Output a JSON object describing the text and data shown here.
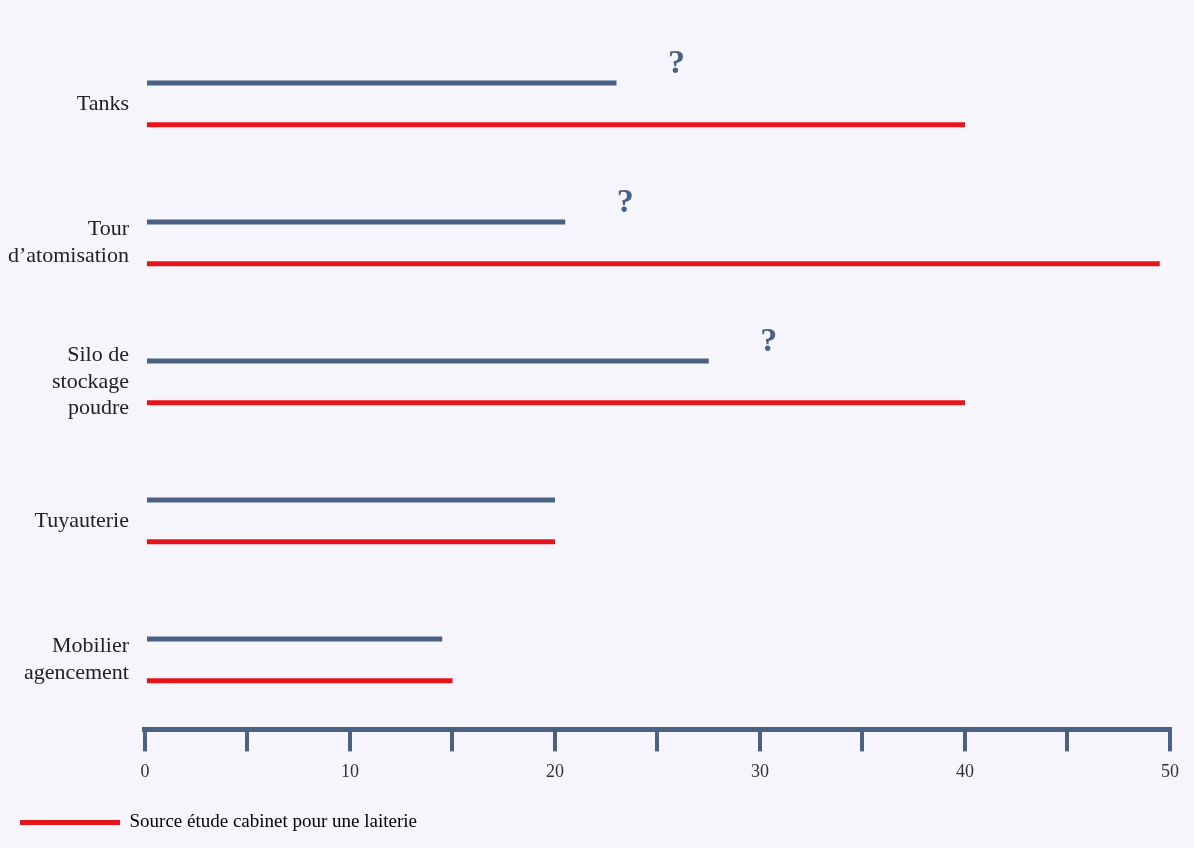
{
  "chart_data": {
    "type": "bar",
    "orientation": "horizontal",
    "categories": [
      "Tanks",
      "Tour d’atomisation",
      "Silo de stockage poudre",
      "Tuyauterie",
      "Mobilier agencement"
    ],
    "series": [
      {
        "color": "#4a6182",
        "values": [
          23,
          20.5,
          27.5,
          20,
          14.5
        ]
      },
      {
        "name": "Source étude cabinet pour une laiterie",
        "color": "#e8141c",
        "values": [
          40,
          49.5,
          40,
          20,
          15
        ]
      }
    ],
    "xlim": [
      0,
      50
    ],
    "xticks": [
      0,
      10,
      20,
      30,
      40,
      50
    ],
    "grid": false,
    "legend": "bottom left",
    "annotations": [
      "?",
      "?",
      "?"
    ]
  }
}
